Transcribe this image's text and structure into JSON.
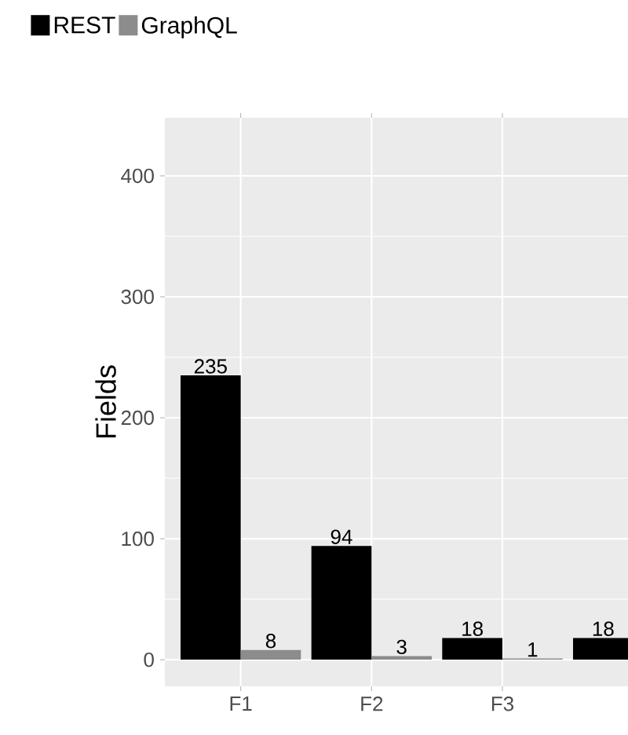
{
  "chart_data": {
    "type": "bar",
    "ylabel": "Fields",
    "categories": [
      "F1",
      "F2",
      "F3",
      null
    ],
    "series": [
      {
        "name": "REST",
        "color": "#000000",
        "values": [
          235,
          94,
          18,
          18
        ]
      },
      {
        "name": "GraphQL",
        "color": "#8c8c8c",
        "values": [
          8,
          3,
          1,
          null
        ]
      }
    ],
    "ylim": [
      -22,
      448
    ],
    "yticks": [
      0,
      100,
      200,
      300,
      400
    ],
    "grid": true,
    "legend": "top",
    "data_labels": true
  }
}
